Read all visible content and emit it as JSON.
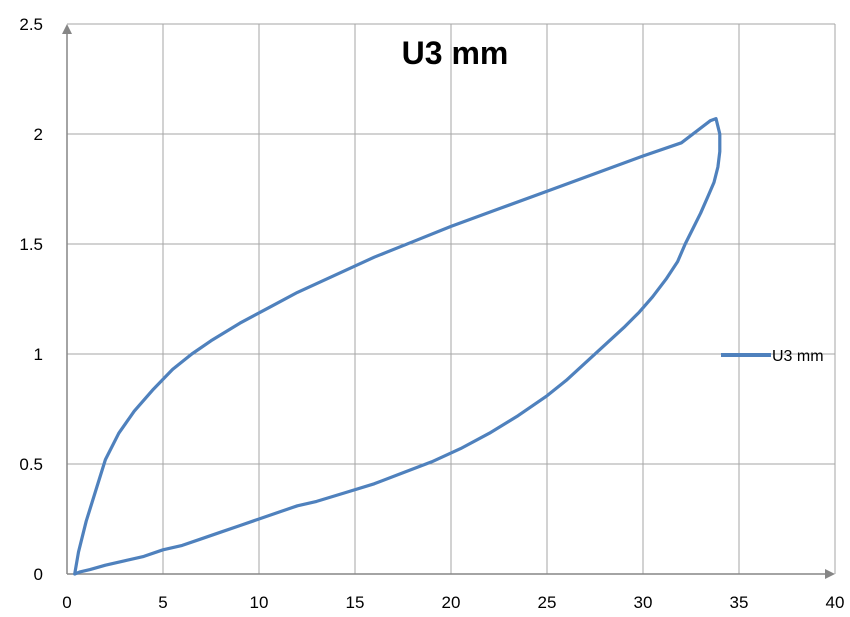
{
  "chart_data": {
    "type": "line",
    "title": "U3 mm",
    "xlabel": "",
    "ylabel": "",
    "xlim": [
      0,
      40
    ],
    "ylim": [
      0,
      2.5
    ],
    "x_ticks": [
      "0",
      "5",
      "10",
      "15",
      "20",
      "25",
      "30",
      "35",
      "40"
    ],
    "y_ticks": [
      "0",
      "0.5",
      "1",
      "1.5",
      "2",
      "2.5"
    ],
    "grid": true,
    "legend_position": "right",
    "colors": {
      "series": "#4F81BD",
      "grid": "#A6A6A6",
      "axis": "#868686"
    },
    "series": [
      {
        "name": "U3 mm",
        "x": [
          0.4,
          0.6,
          1.0,
          1.5,
          2.0,
          2.7,
          3.5,
          4.5,
          5.5,
          6.5,
          7.5,
          9.0,
          10.5,
          12.0,
          14.0,
          16.0,
          18.0,
          20.0,
          22.5,
          25.0,
          27.5,
          30.0,
          32.0,
          33.5,
          33.8,
          34.0,
          34.0,
          33.9,
          33.7,
          33.4,
          33.0,
          32.6,
          32.2,
          31.8,
          31.2,
          30.5,
          29.8,
          29.0,
          28.0,
          27.0,
          26.0,
          25.0,
          23.5,
          22.0,
          20.5,
          19.0,
          17.5,
          16.0,
          14.5,
          13.0,
          12.0,
          11.0,
          10.0,
          9.0,
          8.0,
          7.0,
          6.0,
          5.0,
          4.0,
          3.0,
          2.0,
          1.2,
          0.7,
          0.4
        ],
        "y": [
          0.0,
          0.1,
          0.24,
          0.38,
          0.52,
          0.64,
          0.74,
          0.84,
          0.93,
          1.0,
          1.06,
          1.14,
          1.21,
          1.28,
          1.36,
          1.44,
          1.51,
          1.58,
          1.66,
          1.74,
          1.82,
          1.9,
          1.96,
          2.06,
          2.07,
          2.0,
          1.92,
          1.85,
          1.78,
          1.72,
          1.64,
          1.57,
          1.5,
          1.42,
          1.34,
          1.26,
          1.19,
          1.12,
          1.04,
          0.96,
          0.88,
          0.81,
          0.72,
          0.64,
          0.57,
          0.51,
          0.46,
          0.41,
          0.37,
          0.33,
          0.31,
          0.28,
          0.25,
          0.22,
          0.19,
          0.16,
          0.13,
          0.11,
          0.08,
          0.06,
          0.04,
          0.02,
          0.01,
          0.0
        ]
      }
    ]
  }
}
